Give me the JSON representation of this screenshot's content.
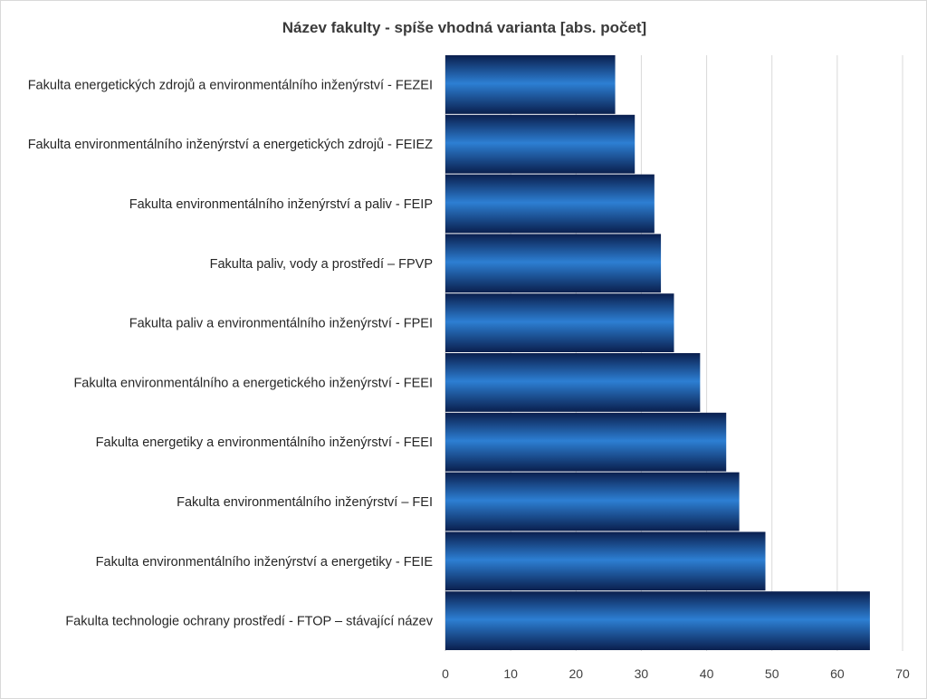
{
  "chart_data": {
    "type": "bar",
    "orientation": "horizontal",
    "title": "Název fakulty - spíše vhodná varianta [abs. počet]",
    "xlabel": "",
    "ylabel": "",
    "categories": [
      "Fakulta energetických zdrojů a environmentálního inženýrství - FEZEI",
      "Fakulta environmentálního inženýrství a energetických zdrojů - FEIEZ",
      "Fakulta environmentálního inženýrství a paliv - FEIP",
      "Fakulta paliv, vody a prostředí – FPVP",
      "Fakulta paliv a environmentálního inženýrství - FPEI",
      "Fakulta environmentálního a energetického inženýrství - FEEI",
      "Fakulta energetiky a environmentálního inženýrství - FEEI",
      "Fakulta environmentálního inženýrství – FEI",
      "Fakulta environmentálního inženýrství a energetiky - FEIE",
      "Fakulta technologie ochrany prostředí - FTOP – stávající název"
    ],
    "values": [
      26,
      29,
      32,
      33,
      35,
      39,
      43,
      45,
      49,
      65
    ],
    "xlim": [
      0,
      70
    ],
    "x_ticks": [
      "0",
      "10",
      "20",
      "30",
      "40",
      "50",
      "60",
      "70"
    ],
    "grid": true,
    "legend": "none",
    "colors": {
      "bar_dark": "#0a1f4e",
      "bar_light": "#2d7fd3",
      "bar_mid": "#1556a8",
      "grid": "#d9d9d9",
      "axis": "#bfbfbf"
    }
  }
}
